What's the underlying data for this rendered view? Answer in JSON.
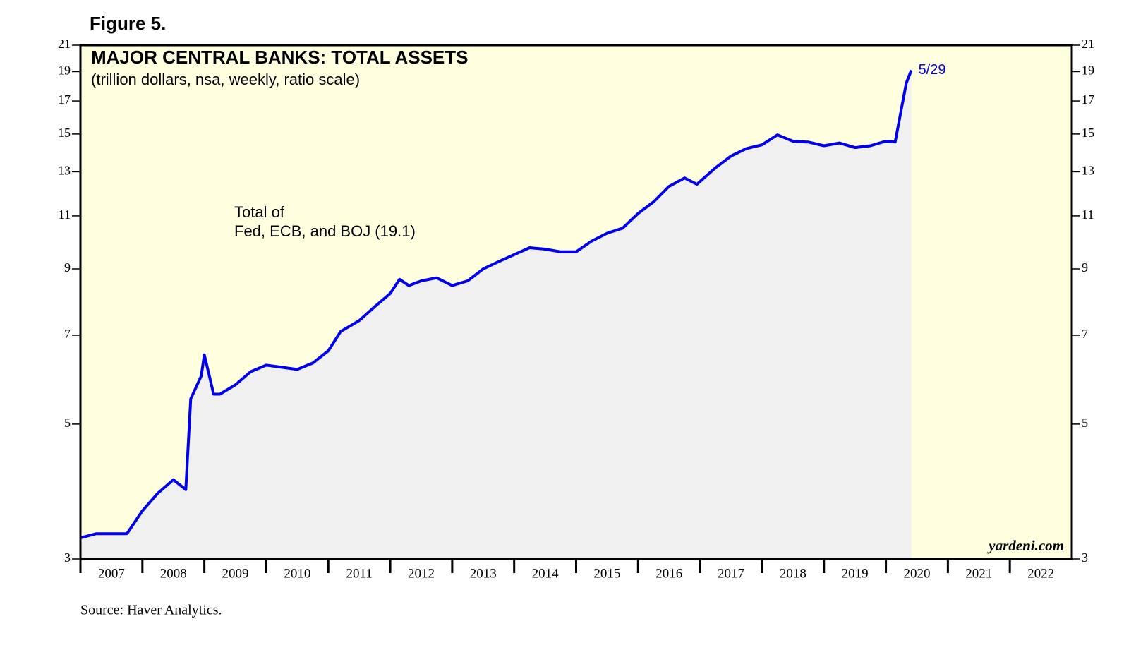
{
  "chart_data": {
    "type": "line",
    "figure_label": "Figure 5.",
    "title": "MAJOR CENTRAL BANKS: TOTAL ASSETS",
    "subtitle": "(trillion dollars, nsa, weekly, ratio scale)",
    "annotations": [
      "Total of",
      "Fed, ECB, and BOJ (19.1)"
    ],
    "end_label": "5/29",
    "watermark": "yardeni.com",
    "source": "Source: Haver Analytics.",
    "log_scale": true,
    "x": [
      2007.0,
      2007.25,
      2007.5,
      2007.75,
      2008.0,
      2008.25,
      2008.5,
      2008.7,
      2008.78,
      2008.95,
      2009.0,
      2009.15,
      2009.25,
      2009.5,
      2009.75,
      2010.0,
      2010.25,
      2010.5,
      2010.75,
      2011.0,
      2011.2,
      2011.5,
      2011.75,
      2012.0,
      2012.15,
      2012.3,
      2012.5,
      2012.75,
      2013.0,
      2013.25,
      2013.5,
      2013.75,
      2014.0,
      2014.25,
      2014.5,
      2014.75,
      2015.0,
      2015.25,
      2015.5,
      2015.75,
      2016.0,
      2016.25,
      2016.5,
      2016.75,
      2016.95,
      2017.25,
      2017.5,
      2017.75,
      2018.0,
      2018.25,
      2018.5,
      2018.75,
      2019.0,
      2019.25,
      2019.5,
      2019.75,
      2020.0,
      2020.15,
      2020.25,
      2020.33,
      2020.41
    ],
    "series": [
      {
        "name": "Total of Fed, ECB, and BOJ",
        "color": "#0000ee",
        "values": [
          3.25,
          3.3,
          3.3,
          3.3,
          3.6,
          3.85,
          4.05,
          3.9,
          5.5,
          6.0,
          6.5,
          5.6,
          5.6,
          5.8,
          6.1,
          6.25,
          6.2,
          6.15,
          6.3,
          6.6,
          7.1,
          7.4,
          7.8,
          8.2,
          8.65,
          8.45,
          8.6,
          8.7,
          8.45,
          8.6,
          9.0,
          9.25,
          9.5,
          9.75,
          9.7,
          9.6,
          9.6,
          10.0,
          10.3,
          10.5,
          11.1,
          11.6,
          12.3,
          12.7,
          12.4,
          13.2,
          13.8,
          14.2,
          14.4,
          14.95,
          14.6,
          14.55,
          14.35,
          14.5,
          14.25,
          14.35,
          14.6,
          14.55,
          16.5,
          18.2,
          19.1
        ]
      }
    ],
    "xlim": [
      2007,
      2023
    ],
    "xticks": [
      2007,
      2008,
      2009,
      2010,
      2011,
      2012,
      2013,
      2014,
      2015,
      2016,
      2017,
      2018,
      2019,
      2020,
      2021,
      2022
    ],
    "ylim": [
      3,
      21
    ],
    "yticks": [
      3,
      5,
      7,
      9,
      11,
      13,
      15,
      17,
      19,
      21
    ]
  }
}
